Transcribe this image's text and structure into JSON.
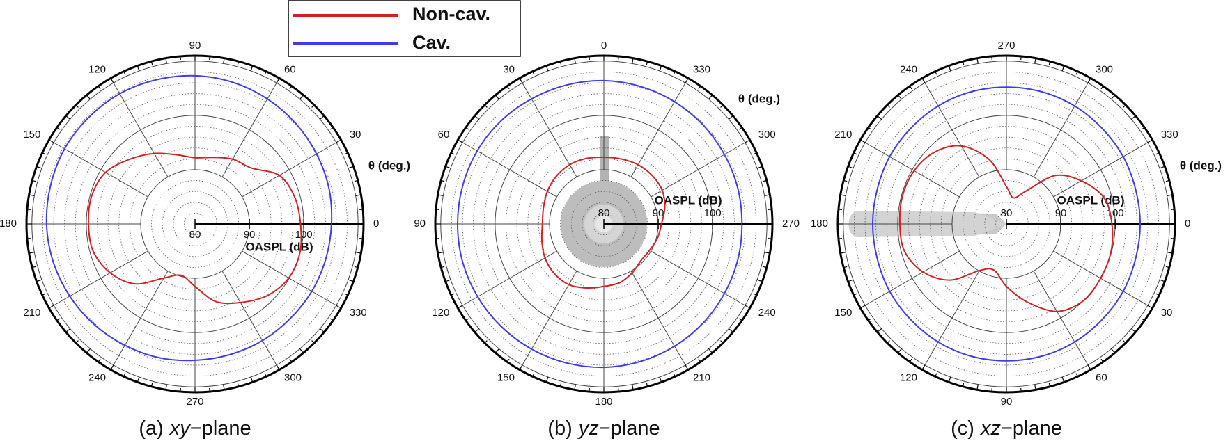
{
  "chart_data": [
    {
      "type": "polar",
      "caption": {
        "label": "(a)",
        "plane": "xy",
        "suffix": "−plane"
      },
      "radial_label": "OASPL (dB)",
      "theta_label": "θ (deg.)",
      "theta_zero": "E",
      "theta_direction": 1,
      "rlim": [
        80,
        111
      ],
      "rticks": [
        80,
        90,
        100
      ],
      "rgrid": [
        90,
        100,
        110
      ],
      "rminor": [
        82,
        84,
        86,
        88,
        92,
        94,
        96,
        98,
        102,
        104,
        106,
        108
      ],
      "thetaticks": [
        0,
        30,
        60,
        90,
        120,
        150,
        180,
        210,
        240,
        270,
        300,
        330
      ],
      "theta": [
        0,
        15,
        30,
        45,
        60,
        75,
        90,
        105,
        120,
        135,
        150,
        165,
        180,
        195,
        210,
        225,
        240,
        255,
        270,
        285,
        300,
        315,
        330,
        345
      ],
      "series": [
        {
          "name": "Non-cav.",
          "color": "#d42020",
          "values": [
            99.4,
            99.0,
            97.9,
            94.6,
            93.8,
            92.7,
            92.2,
            93.2,
            95.0,
            96.9,
            99.0,
            99.7,
            99.6,
            99.4,
            98.0,
            95.6,
            91.5,
            89.8,
            91.5,
            94.8,
            96.7,
            98.7,
            99.9,
            100.0
          ]
        },
        {
          "name": "Cav.",
          "color": "#3b3bf0",
          "values": [
            105.1,
            105.5,
            105.8,
            106.2,
            106.6,
            107.0,
            107.3,
            107.5,
            107.7,
            107.7,
            107.7,
            107.5,
            107.3,
            107.0,
            106.6,
            106.2,
            105.8,
            105.5,
            105.1,
            104.9,
            104.8,
            104.7,
            104.8,
            104.9
          ]
        }
      ]
    },
    {
      "type": "polar",
      "caption": {
        "label": "(b)",
        "plane": "yz",
        "suffix": "−plane"
      },
      "radial_label": "OASPL (dB)",
      "theta_label": "θ (deg.)",
      "theta_zero": "N",
      "theta_direction": 1,
      "rlim": [
        80,
        111
      ],
      "rticks": [
        80,
        90,
        100
      ],
      "rgrid": [
        90,
        100,
        110
      ],
      "rminor": [
        82,
        84,
        86,
        88,
        92,
        94,
        96,
        98,
        102,
        104,
        106,
        108
      ],
      "thetaticks": [
        0,
        30,
        60,
        90,
        120,
        150,
        180,
        210,
        240,
        270,
        300,
        330
      ],
      "theta": [
        0,
        15,
        30,
        45,
        60,
        75,
        90,
        105,
        120,
        135,
        150,
        165,
        180,
        195,
        210,
        225,
        240,
        255,
        270,
        285,
        300,
        315,
        330,
        345
      ],
      "series": [
        {
          "color": "#d42020",
          "values": [
            92.3,
            92.5,
            92.6,
            92.4,
            92.0,
            91.5,
            91.3,
            91.8,
            92.5,
            92.9,
            92.9,
            92.2,
            91.5,
            91.2,
            90.4,
            89.6,
            89.7,
            90.2,
            90.6,
            91.6,
            92.4,
            92.6,
            92.6,
            92.4
          ]
        },
        {
          "color": "#3b3bf0",
          "values": [
            106.4,
            106.5,
            106.6,
            106.8,
            106.9,
            106.9,
            106.9,
            106.9,
            106.8,
            106.7,
            106.6,
            106.5,
            106.4,
            106.2,
            106.0,
            105.8,
            105.6,
            105.5,
            105.4,
            105.5,
            105.6,
            105.8,
            106.0,
            106.2
          ]
        }
      ]
    },
    {
      "type": "polar",
      "caption": {
        "label": "(c)",
        "plane": "xz",
        "suffix": "−plane"
      },
      "radial_label": "OASPL (dB)",
      "theta_label": "θ (deg.)",
      "theta_zero": "E",
      "theta_direction": -1,
      "rlim": [
        80,
        111
      ],
      "rticks": [
        80,
        90,
        100
      ],
      "rgrid": [
        90,
        100,
        110
      ],
      "rminor": [
        82,
        84,
        86,
        88,
        92,
        94,
        96,
        98,
        102,
        104,
        106,
        108
      ],
      "thetaticks": [
        0,
        30,
        60,
        90,
        120,
        150,
        180,
        210,
        240,
        270,
        300,
        330
      ],
      "theta": [
        0,
        15,
        30,
        45,
        60,
        75,
        90,
        105,
        120,
        135,
        150,
        165,
        180,
        195,
        210,
        225,
        240,
        255,
        270,
        285,
        300,
        315,
        330,
        345
      ],
      "series": [
        {
          "color": "#d42020",
          "values": [
            99.4,
            99.9,
            100.0,
            100.0,
            98.6,
            94.9,
            91.5,
            88.8,
            89.9,
            94.6,
            97.7,
            99.4,
            99.6,
            99.8,
            99.6,
            98.7,
            96.6,
            92.3,
            86.9,
            85.0,
            86.9,
            92.6,
            95.9,
            98.6
          ]
        },
        {
          "color": "#3b3bf0",
          "values": [
            104.6,
            104.6,
            104.8,
            104.9,
            105.1,
            105.2,
            105.2,
            105.2,
            105.1,
            104.9,
            104.8,
            104.6,
            104.6,
            104.6,
            104.8,
            104.9,
            105.1,
            105.2,
            105.2,
            105.2,
            105.1,
            104.9,
            104.8,
            104.6
          ]
        }
      ]
    }
  ]
}
